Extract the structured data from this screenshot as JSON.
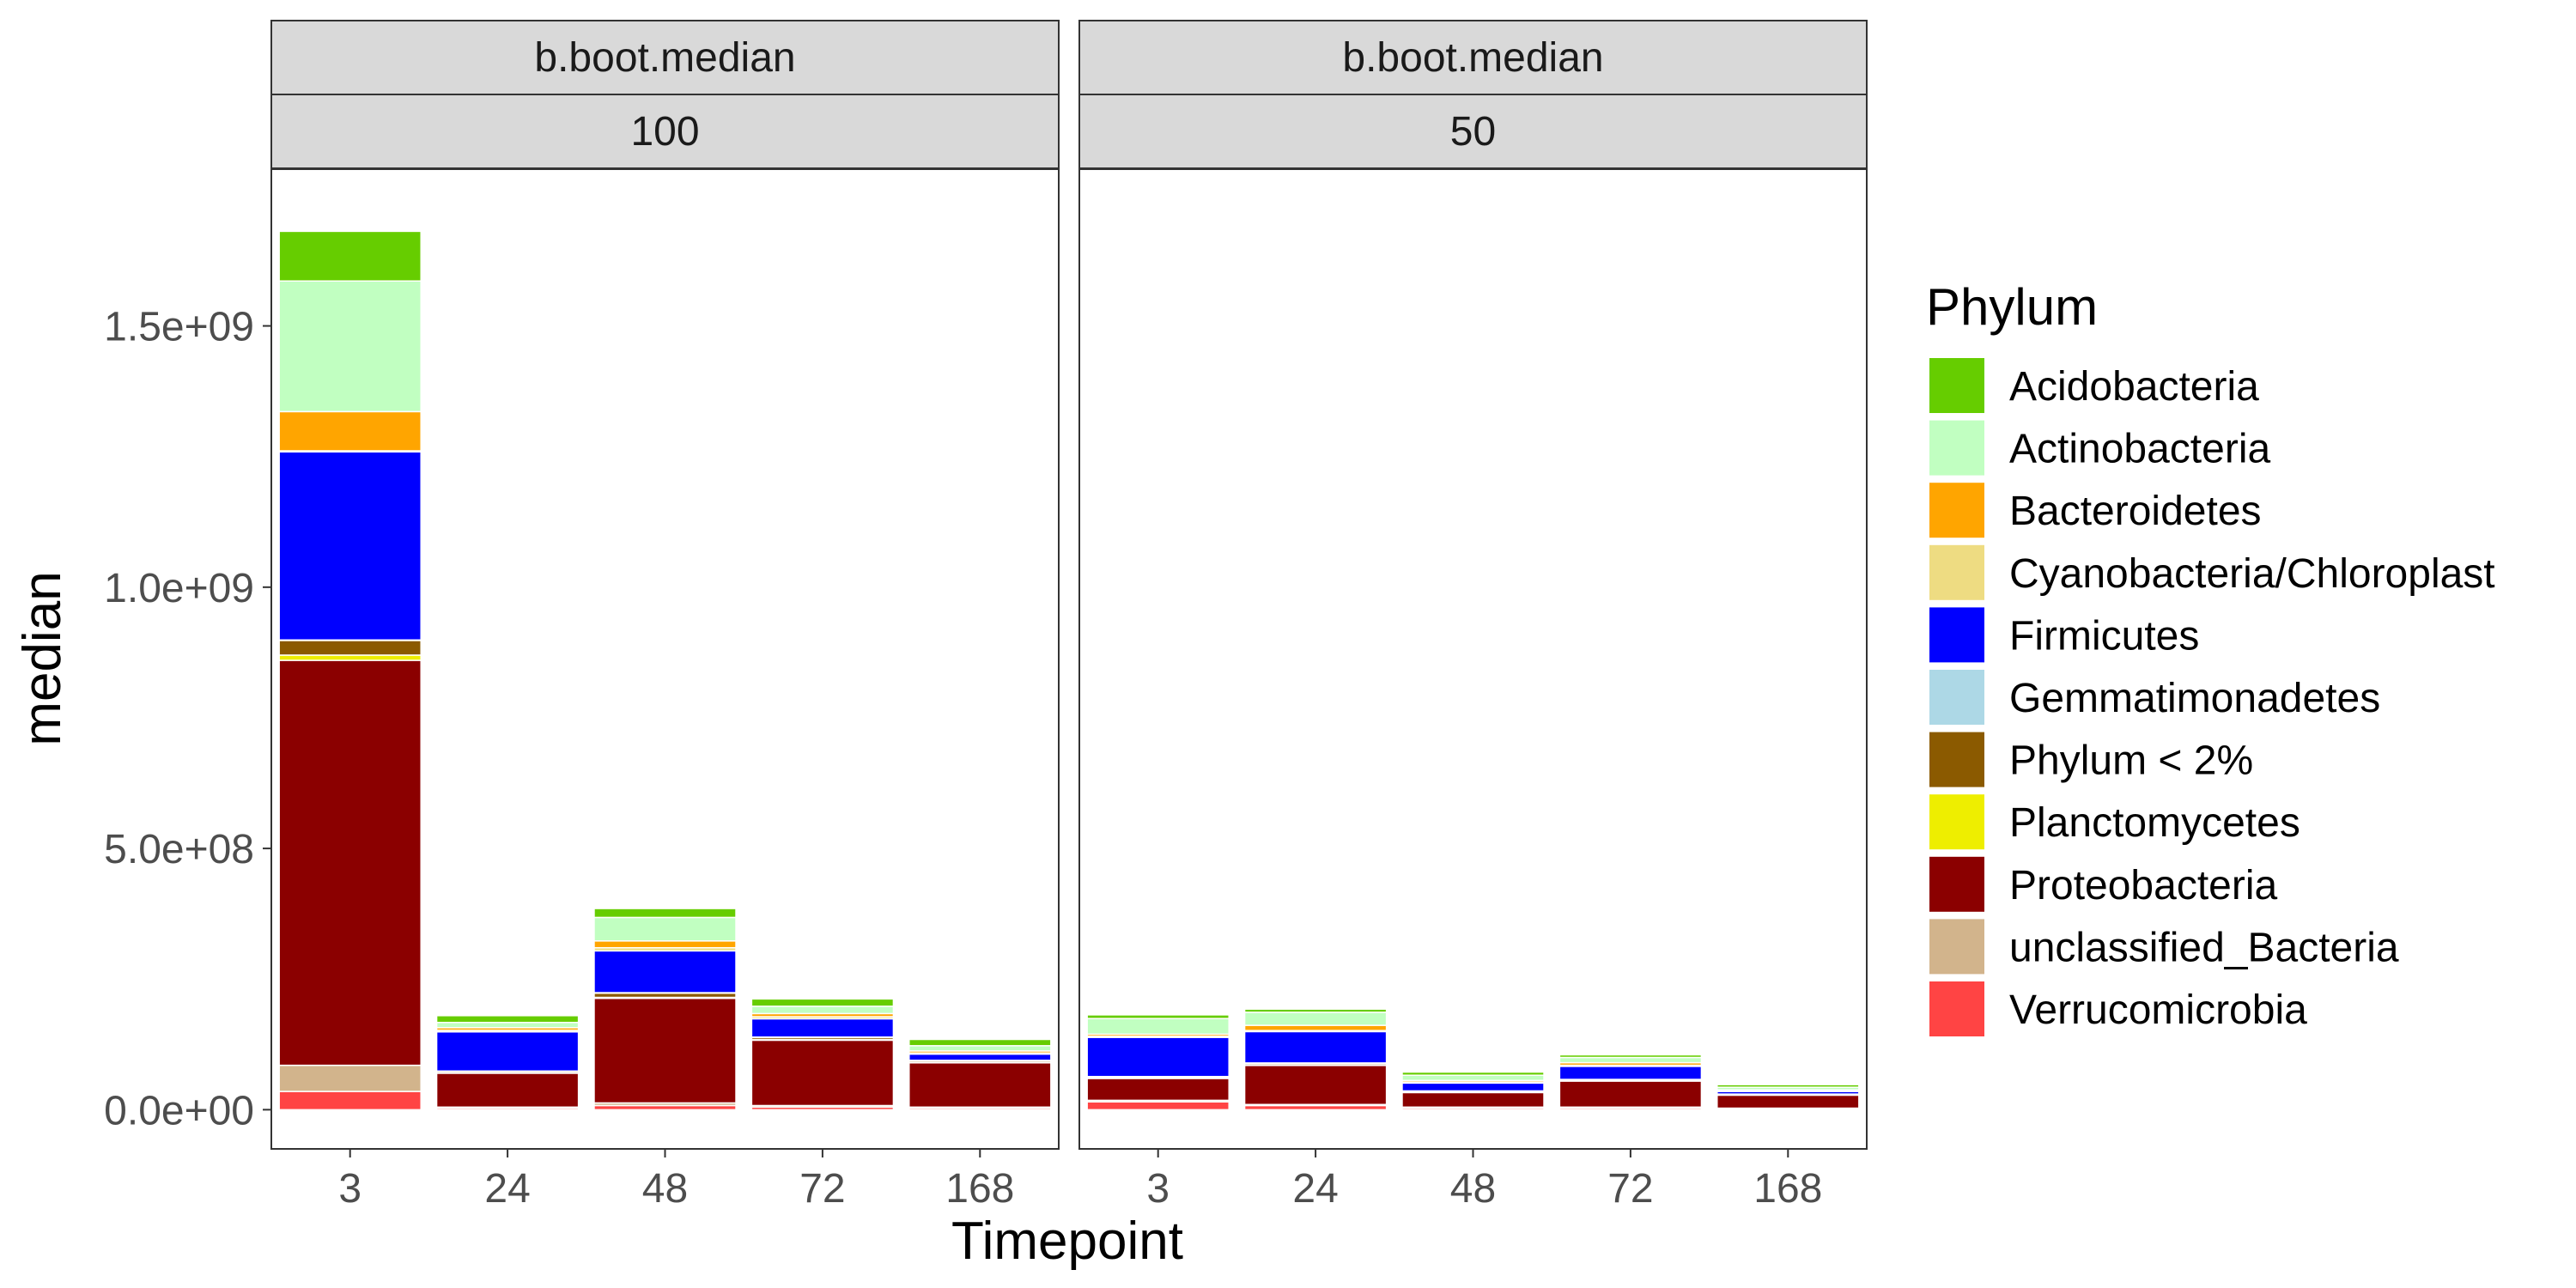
{
  "chart_data": {
    "type": "bar",
    "stacked": true,
    "xlabel": "Timepoint",
    "ylabel": "median",
    "ylim": [
      -75000000,
      1800000000
    ],
    "yticks": [
      "0.0e+00",
      "5.0e+08",
      "1.0e+09",
      "1.5e+09"
    ],
    "ytick_values": [
      0,
      500000000,
      1000000000,
      1500000000
    ],
    "categories": [
      "3",
      "24",
      "48",
      "72",
      "168"
    ],
    "legend": {
      "title": "Phylum",
      "position": "right"
    },
    "series": [
      {
        "name": "Verrucomicrobia",
        "color": "#ff4444"
      },
      {
        "name": "unclassified_Bacteria",
        "color": "#d2b48c"
      },
      {
        "name": "Proteobacteria",
        "color": "#8b0000"
      },
      {
        "name": "Planctomycetes",
        "color": "#eeee00"
      },
      {
        "name": "Phylum < 2%",
        "color": "#8b5a00"
      },
      {
        "name": "Gemmatimonadetes",
        "color": "#add8e6"
      },
      {
        "name": "Firmicutes",
        "color": "#0000ff"
      },
      {
        "name": "Cyanobacteria/Chloroplast",
        "color": "#eedc82"
      },
      {
        "name": "Bacteroidetes",
        "color": "#ffa500"
      },
      {
        "name": "Actinobacteria",
        "color": "#c1ffc1"
      },
      {
        "name": "Acidobacteria",
        "color": "#66cd00"
      }
    ],
    "legend_order": [
      "Acidobacteria",
      "Actinobacteria",
      "Bacteroidetes",
      "Cyanobacteria/Chloroplast",
      "Firmicutes",
      "Gemmatimonadetes",
      "Phylum < 2%",
      "Planctomycetes",
      "Proteobacteria",
      "unclassified_Bacteria",
      "Verrucomicrobia"
    ],
    "panels": [
      {
        "strip_top": "b.boot.median",
        "strip_bottom": "100",
        "values": {
          "Verrucomicrobia": [
            35000000,
            3000000,
            8000000,
            5000000,
            3000000
          ],
          "unclassified_Bacteria": [
            50000000,
            2000000,
            5000000,
            3000000,
            2000000
          ],
          "Proteobacteria": [
            775000000,
            65000000,
            200000000,
            125000000,
            85000000
          ],
          "Planctomycetes": [
            10000000,
            500000,
            2000000,
            1000000,
            500000
          ],
          "Phylum < 2%": [
            28000000,
            3000000,
            8000000,
            4000000,
            3000000
          ],
          "Gemmatimonadetes": [
            1000000,
            500000,
            1000000,
            1000000,
            1000000
          ],
          "Firmicutes": [
            360000000,
            75000000,
            80000000,
            35000000,
            12000000
          ],
          "Cyanobacteria/Chloroplast": [
            2000000,
            3000000,
            6000000,
            4000000,
            2000000
          ],
          "Bacteroidetes": [
            75000000,
            5000000,
            13000000,
            6000000,
            4000000
          ],
          "Actinobacteria": [
            250000000,
            10000000,
            45000000,
            14000000,
            10000000
          ],
          "Acidobacteria": [
            95000000,
            13000000,
            17000000,
            14000000,
            12000000
          ]
        }
      },
      {
        "strip_top": "b.boot.median",
        "strip_bottom": "50",
        "values": {
          "Verrucomicrobia": [
            15000000,
            8000000,
            3000000,
            3000000,
            2000000
          ],
          "unclassified_Bacteria": [
            3000000,
            2000000,
            2000000,
            2000000,
            1000000
          ],
          "Proteobacteria": [
            42000000,
            75000000,
            28000000,
            50000000,
            25000000
          ],
          "Planctomycetes": [
            500000,
            500000,
            500000,
            500000,
            500000
          ],
          "Phylum < 2%": [
            2000000,
            3000000,
            2000000,
            2000000,
            1000000
          ],
          "Gemmatimonadetes": [
            1000000,
            1000000,
            500000,
            500000,
            500000
          ],
          "Firmicutes": [
            75000000,
            60000000,
            15000000,
            25000000,
            5000000
          ],
          "Cyanobacteria/Chloroplast": [
            2000000,
            2000000,
            2000000,
            2000000,
            1000000
          ],
          "Bacteroidetes": [
            4000000,
            10000000,
            3000000,
            5000000,
            2000000
          ],
          "Actinobacteria": [
            30000000,
            25000000,
            10000000,
            10000000,
            5000000
          ],
          "Acidobacteria": [
            7000000,
            6000000,
            6000000,
            5000000,
            5000000
          ]
        }
      }
    ]
  }
}
